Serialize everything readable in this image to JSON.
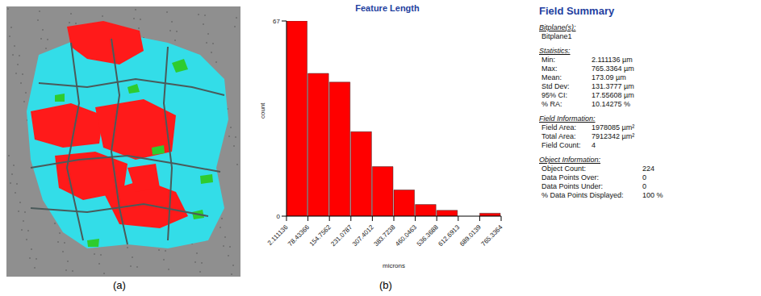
{
  "panel_labels": [
    "(a)",
    "(b)"
  ],
  "chart_data": {
    "type": "histogram",
    "title": "Feature Length",
    "x_label": "microns",
    "y_label": "count",
    "bins": [
      2.111136,
      78.433662,
      154.756188,
      231.078714,
      307.40124,
      383.723766,
      460.046292,
      536.368818,
      612.691344,
      689.01387,
      765.336396
    ],
    "values": [
      67,
      49,
      46,
      29,
      17,
      9,
      4,
      2,
      0,
      1
    ],
    "color": "#ff0000",
    "xlim": [
      2.111136,
      765.336396
    ],
    "xticks": [
      2.111136,
      {
        "value": 78.433662,
        "label": "78.43366"
      },
      {
        "value": 154.756188,
        "label": "154.7562"
      },
      {
        "value": 231.078714,
        "label": "231.0787"
      },
      {
        "value": 307.40124,
        "label": "307.4012"
      },
      {
        "value": 383.723766,
        "label": "383.7238"
      },
      {
        "value": 460.046292,
        "label": "460.0463"
      },
      {
        "value": 536.368818,
        "label": "536.3688"
      },
      {
        "value": 612.691344,
        "label": "612.6913"
      },
      {
        "value": 689.01387,
        "label": "689.0139"
      },
      {
        "value": 765.336396,
        "label": "765.3364"
      }
    ],
    "ylim": [
      0,
      67
    ],
    "yticks": [
      0,
      67
    ]
  },
  "field_summary": {
    "title": "Field Summary",
    "sections": [
      {
        "heading": "Bitplane(s):",
        "rows": [
          [
            "Bitplane1"
          ]
        ]
      },
      {
        "heading": "Statistics:",
        "rows": [
          [
            "Min:",
            "2.111136 µm"
          ],
          [
            "Max:",
            "765.3364 µm"
          ],
          [
            "Mean:",
            "173.09 µm"
          ],
          [
            "Std Dev:",
            "131.3777 µm"
          ],
          [
            "95% CI:",
            "17.55608 µm"
          ],
          [
            "% RA:",
            "10.14275 %"
          ]
        ]
      },
      {
        "heading": "Field Information:",
        "rows": [
          [
            "Field Area:",
            "1978085 µm²"
          ],
          [
            "Total Area:",
            "7912342 µm²"
          ],
          [
            "Field Count:",
            "4"
          ]
        ]
      },
      {
        "heading": "Object Information:",
        "rows": [
          [
            "Object Count:",
            "224"
          ],
          [
            "Data Points Over:",
            "0"
          ],
          [
            "Data Points Under:",
            "0"
          ],
          [
            "% Data Points Displayed:",
            "100 %"
          ]
        ]
      }
    ]
  }
}
